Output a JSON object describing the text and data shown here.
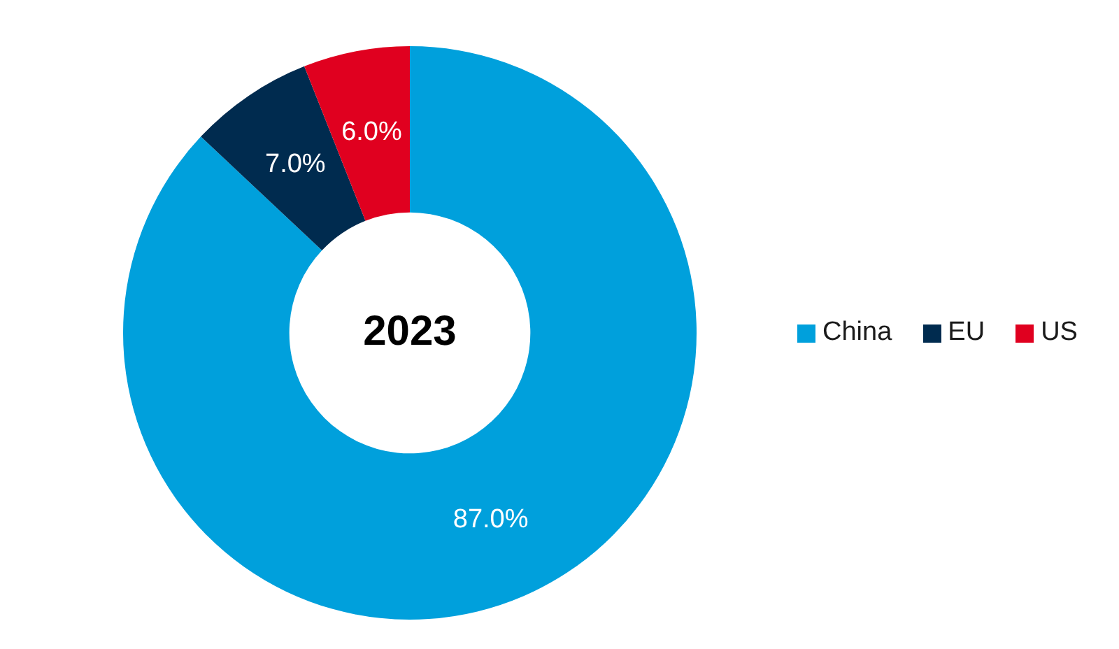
{
  "chart_data": {
    "type": "donut",
    "title": "2023",
    "categories": [
      "China",
      "EU",
      "US"
    ],
    "values": [
      87.0,
      7.0,
      6.0
    ],
    "colors": [
      "#00a0dc",
      "#002b4f",
      "#e0001f"
    ],
    "value_labels": [
      "87.0%",
      "7.0%",
      "6.0%"
    ],
    "legend": "right"
  }
}
